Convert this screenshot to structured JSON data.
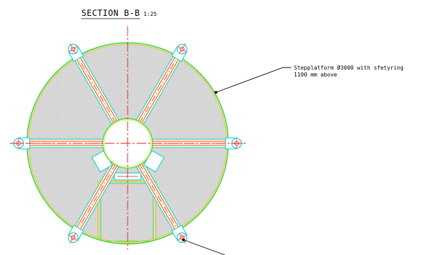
{
  "drawing": {
    "section_title": "SECTION B-B",
    "scale": "1:25",
    "callout": {
      "line1": "Stepplatform  Ø3000 with sfetyring",
      "line2": "1100 mm above"
    },
    "colors": {
      "outline": "#22dd22",
      "outline_inner": "#eecc00",
      "grating_fill": "#dcdcdc",
      "grating_line": "#b8b8b8",
      "beam_edge": "#00cccc",
      "beam_core": "#ff6600",
      "beam_center": "#ee1111",
      "centerline": "#ee1111",
      "leader": "#000000",
      "lug": "#00cccc"
    },
    "grating": "checkered-grating",
    "beam_count": 6
  }
}
